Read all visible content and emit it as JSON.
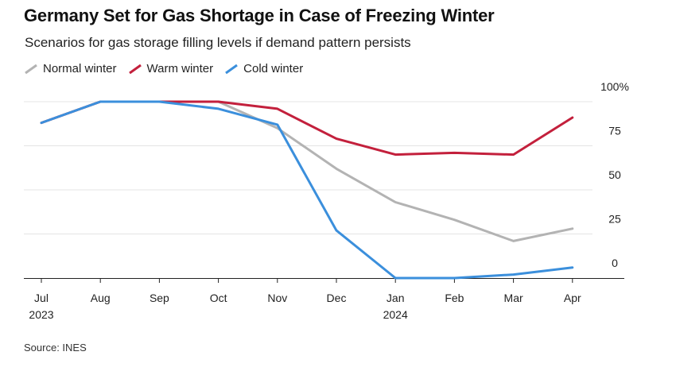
{
  "chart_data": {
    "type": "line",
    "title": "Germany Set for Gas Shortage in Case of Freezing Winter",
    "subtitle": "Scenarios for gas storage filling levels if demand pattern persists",
    "categories": [
      "Jul",
      "Aug",
      "Sep",
      "Oct",
      "Nov",
      "Dec",
      "Jan",
      "Feb",
      "Mar",
      "Apr"
    ],
    "year_labels": [
      {
        "index": 0,
        "label": "2023"
      },
      {
        "index": 6,
        "label": "2024"
      }
    ],
    "y_ticks": [
      {
        "value": 100,
        "label": "100%"
      },
      {
        "value": 75,
        "label": "75"
      },
      {
        "value": 50,
        "label": "50"
      },
      {
        "value": 25,
        "label": "25"
      },
      {
        "value": 0,
        "label": "0"
      }
    ],
    "ylim": [
      0,
      100
    ],
    "series": [
      {
        "name": "Normal winter",
        "color": "#b3b3b3",
        "values": [
          88,
          100,
          100,
          100,
          85,
          62,
          43,
          33,
          21,
          28
        ]
      },
      {
        "name": "Warm winter",
        "color": "#c3203c",
        "values": [
          88,
          100,
          100,
          100,
          96,
          79,
          70,
          71,
          70,
          91
        ]
      },
      {
        "name": "Cold winter",
        "color": "#3b8fdc",
        "values": [
          88,
          100,
          100,
          96,
          87,
          27,
          0,
          0,
          2,
          6
        ]
      }
    ],
    "source": "Source: INES"
  }
}
